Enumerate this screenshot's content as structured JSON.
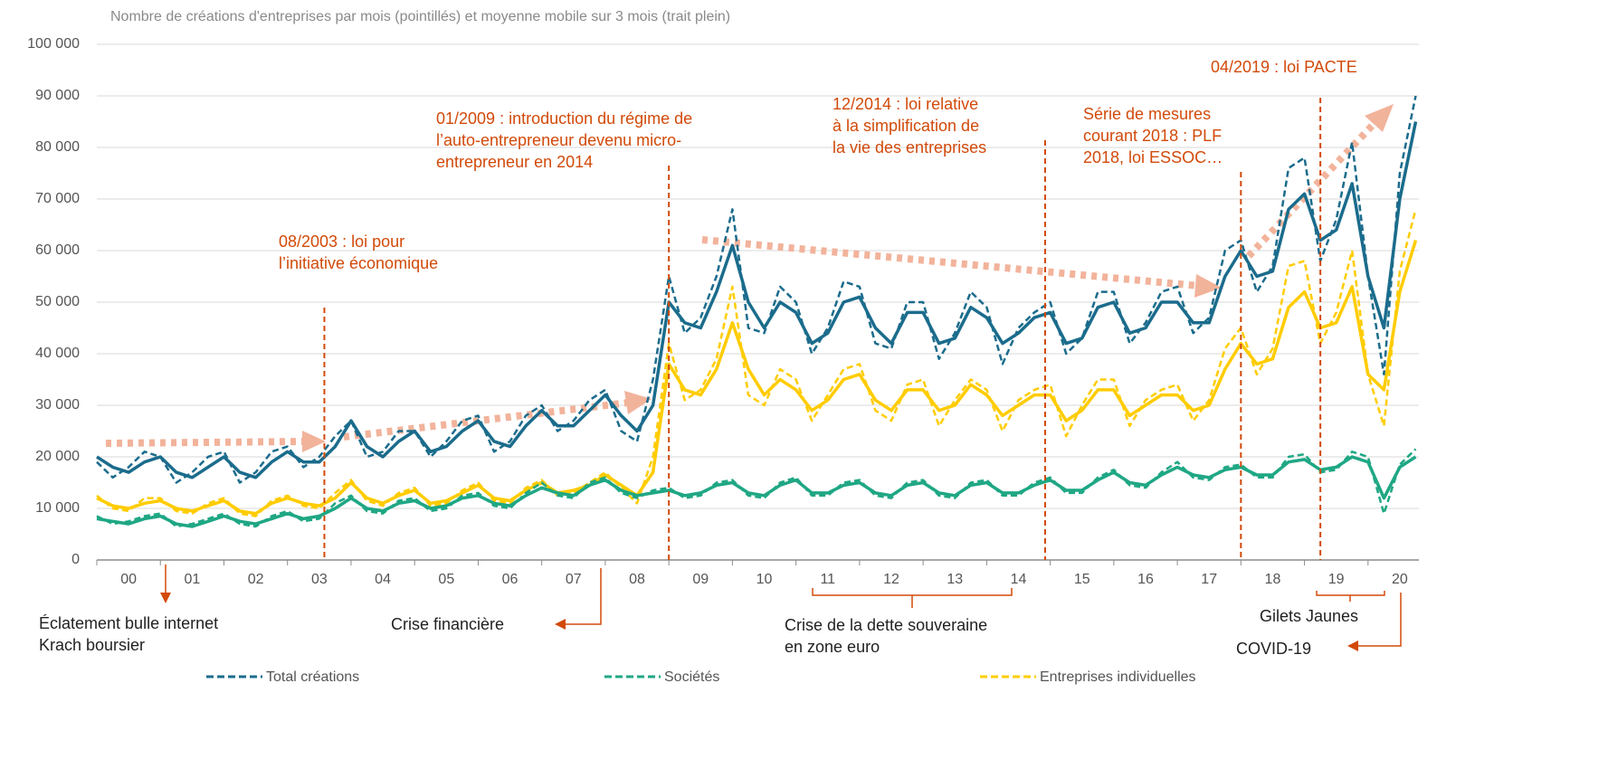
{
  "chart_data": {
    "type": "line",
    "title": "Nombre de créations d'entreprises par mois (pointillés) et moyenne mobile sur 3 mois (trait plein)",
    "x": [
      2000,
      2000.25,
      2000.5,
      2000.75,
      2001,
      2001.25,
      2001.5,
      2001.75,
      2002,
      2002.25,
      2002.5,
      2002.75,
      2003,
      2003.25,
      2003.5,
      2003.75,
      2004,
      2004.25,
      2004.5,
      2004.75,
      2005,
      2005.25,
      2005.5,
      2005.75,
      2006,
      2006.25,
      2006.5,
      2006.75,
      2007,
      2007.25,
      2007.5,
      2007.75,
      2008,
      2008.25,
      2008.5,
      2008.75,
      2009,
      2009.25,
      2009.5,
      2009.75,
      2010,
      2010.25,
      2010.5,
      2010.75,
      2011,
      2011.25,
      2011.5,
      2011.75,
      2012,
      2012.25,
      2012.5,
      2012.75,
      2013,
      2013.25,
      2013.5,
      2013.75,
      2014,
      2014.25,
      2014.5,
      2014.75,
      2015,
      2015.25,
      2015.5,
      2015.75,
      2016,
      2016.25,
      2016.5,
      2016.75,
      2017,
      2017.25,
      2017.5,
      2017.75,
      2018,
      2018.25,
      2018.5,
      2018.75,
      2019,
      2019.25,
      2019.5,
      2019.75,
      2020,
      2020.25,
      2020.5,
      2020.75
    ],
    "xlim": [
      2000,
      2020.8
    ],
    "xticks": [
      {
        "value": 2000.5,
        "label": "00"
      },
      {
        "value": 2001.5,
        "label": "01"
      },
      {
        "value": 2002.5,
        "label": "02"
      },
      {
        "value": 2003.5,
        "label": "03"
      },
      {
        "value": 2004.5,
        "label": "04"
      },
      {
        "value": 2005.5,
        "label": "05"
      },
      {
        "value": 2006.5,
        "label": "06"
      },
      {
        "value": 2007.5,
        "label": "07"
      },
      {
        "value": 2008.5,
        "label": "08"
      },
      {
        "value": 2009.5,
        "label": "09"
      },
      {
        "value": 2010.5,
        "label": "10"
      },
      {
        "value": 2011.5,
        "label": "11"
      },
      {
        "value": 2012.5,
        "label": "12"
      },
      {
        "value": 2013.5,
        "label": "13"
      },
      {
        "value": 2014.5,
        "label": "14"
      },
      {
        "value": 2015.5,
        "label": "15"
      },
      {
        "value": 2016.5,
        "label": "16"
      },
      {
        "value": 2017.5,
        "label": "17"
      },
      {
        "value": 2018.5,
        "label": "18"
      },
      {
        "value": 2019.5,
        "label": "19"
      },
      {
        "value": 2020.5,
        "label": "20"
      }
    ],
    "ylim": [
      0,
      100000
    ],
    "yticks": [
      0,
      {
        "value": 10000,
        "label": "10 000"
      },
      {
        "value": 20000,
        "label": "20 000"
      },
      {
        "value": 30000,
        "label": "30 000"
      },
      {
        "value": 40000,
        "label": "40 000"
      },
      {
        "value": 50000,
        "label": "50 000"
      },
      {
        "value": 60000,
        "label": "60 000"
      },
      {
        "value": 70000,
        "label": "70 000"
      },
      {
        "value": 80000,
        "label": "80 000"
      },
      {
        "value": 90000,
        "label": "90 000"
      },
      {
        "value": 100000,
        "label": "100 000"
      }
    ],
    "grid": true,
    "series": [
      {
        "name": "Total créations",
        "color": "#1b6c8c",
        "values": [
          19000,
          16000,
          18000,
          21000,
          20000,
          15000,
          17000,
          20000,
          21000,
          15000,
          17000,
          21000,
          22000,
          18000,
          20000,
          24000,
          27000,
          20000,
          21000,
          25000,
          25000,
          20000,
          23000,
          27000,
          28000,
          21000,
          23000,
          28000,
          30000,
          25000,
          27000,
          31000,
          33000,
          25000,
          23000,
          35000,
          55000,
          44000,
          47000,
          55000,
          68000,
          45000,
          44000,
          53000,
          50000,
          40000,
          45000,
          54000,
          53000,
          42000,
          41000,
          50000,
          50000,
          39000,
          44000,
          52000,
          49000,
          38000,
          45000,
          48000,
          50000,
          40000,
          43000,
          52000,
          52000,
          42000,
          46000,
          52000,
          53000,
          44000,
          47000,
          60000,
          62000,
          52000,
          57000,
          76000,
          78000,
          58000,
          66000,
          81000,
          55000,
          36000,
          75000,
          90000
        ],
        "moving_average": [
          20000,
          18000,
          17000,
          19000,
          20000,
          17000,
          16000,
          18000,
          20000,
          17000,
          16000,
          19000,
          21000,
          19000,
          19000,
          22000,
          27000,
          22000,
          20000,
          23000,
          25000,
          21000,
          22000,
          25000,
          27000,
          23000,
          22000,
          26000,
          29000,
          26000,
          26000,
          29000,
          32000,
          28000,
          25000,
          30000,
          50000,
          46000,
          45000,
          52000,
          61000,
          50000,
          45000,
          50000,
          48000,
          42000,
          44000,
          50000,
          51000,
          45000,
          42000,
          48000,
          48000,
          42000,
          43000,
          49000,
          47000,
          42000,
          44000,
          47000,
          48000,
          42000,
          43000,
          49000,
          50000,
          44000,
          45000,
          50000,
          50000,
          46000,
          46000,
          55000,
          60000,
          55000,
          56000,
          68000,
          71000,
          62000,
          64000,
          73000,
          55000,
          45000,
          70000,
          85000
        ]
      },
      {
        "name": "Sociétés",
        "color": "#1fa784",
        "values": [
          8500,
          7000,
          7500,
          8500,
          9000,
          6500,
          7000,
          8000,
          9000,
          7000,
          6500,
          8500,
          9500,
          7500,
          8000,
          11000,
          12500,
          9500,
          9000,
          11500,
          12000,
          9500,
          10000,
          12500,
          13000,
          10500,
          10000,
          13000,
          15000,
          12500,
          12000,
          15000,
          16000,
          13000,
          12000,
          13500,
          14000,
          12000,
          12500,
          15000,
          15500,
          12500,
          12000,
          15000,
          16000,
          12500,
          12500,
          15000,
          15500,
          12500,
          12000,
          15000,
          15500,
          12500,
          12000,
          15000,
          15500,
          12500,
          12500,
          15000,
          16000,
          13000,
          13000,
          16000,
          17500,
          14500,
          14000,
          17000,
          19000,
          16000,
          15500,
          18000,
          18500,
          16000,
          16000,
          20000,
          20500,
          17000,
          17500,
          21000,
          20000,
          9000,
          18500,
          21500
        ],
        "moving_average": [
          8000,
          7500,
          7000,
          8000,
          8500,
          7000,
          6500,
          7500,
          8500,
          7500,
          7000,
          8000,
          9000,
          8000,
          8500,
          10000,
          12000,
          10000,
          9500,
          11000,
          11500,
          10000,
          10500,
          12000,
          12500,
          11000,
          10500,
          12500,
          14000,
          13000,
          12500,
          14500,
          15500,
          13500,
          12500,
          13000,
          13500,
          12500,
          13000,
          14500,
          15000,
          13000,
          12500,
          14500,
          15500,
          13000,
          13000,
          14500,
          15000,
          13000,
          12500,
          14500,
          15000,
          13000,
          12500,
          14500,
          15000,
          13000,
          13000,
          14500,
          15500,
          13500,
          13500,
          15500,
          17000,
          15000,
          14500,
          16500,
          18000,
          16500,
          16000,
          17500,
          18000,
          16500,
          16500,
          19000,
          19500,
          17500,
          18000,
          20000,
          19000,
          12000,
          18000,
          20000
        ]
      },
      {
        "name": "Entreprises individuelles",
        "color": "#ffcc00",
        "values": [
          12500,
          10000,
          9500,
          12000,
          12000,
          9500,
          9000,
          11000,
          12000,
          9000,
          8500,
          11500,
          12500,
          10500,
          10000,
          13000,
          15500,
          11500,
          10500,
          13000,
          14000,
          10500,
          11000,
          13500,
          15000,
          11500,
          11000,
          14000,
          15500,
          12500,
          13000,
          15000,
          17000,
          14000,
          11000,
          20000,
          42000,
          31000,
          33000,
          39000,
          53000,
          32000,
          30000,
          37000,
          35000,
          27000,
          32000,
          37000,
          38000,
          29000,
          27000,
          34000,
          35000,
          26000,
          31000,
          35000,
          33000,
          25000,
          31000,
          33000,
          34000,
          24000,
          30000,
          35000,
          35000,
          26000,
          31000,
          33000,
          34000,
          27000,
          31000,
          41000,
          45000,
          36000,
          41000,
          57000,
          58000,
          42000,
          48000,
          60000,
          36000,
          26000,
          56000,
          68000
        ],
        "moving_average": [
          12000,
          10500,
          10000,
          11000,
          11500,
          10000,
          9500,
          10500,
          11500,
          9500,
          9000,
          11000,
          12000,
          11000,
          10500,
          12000,
          15000,
          12000,
          11000,
          12500,
          13500,
          11000,
          11500,
          13000,
          14500,
          12000,
          11500,
          13500,
          15000,
          13000,
          13500,
          14500,
          16500,
          14500,
          12500,
          17000,
          38000,
          33000,
          32000,
          37000,
          46000,
          37000,
          32000,
          35000,
          33000,
          29000,
          31000,
          35000,
          36000,
          31000,
          29000,
          33000,
          33000,
          29000,
          30000,
          34000,
          32000,
          28000,
          30000,
          32000,
          32000,
          27000,
          29000,
          33000,
          33000,
          28000,
          30000,
          32000,
          32000,
          29000,
          30000,
          37000,
          42000,
          38000,
          39000,
          49000,
          52000,
          45000,
          46000,
          53000,
          36000,
          33000,
          52000,
          62000
        ]
      }
    ],
    "events": [
      {
        "x": 2003.58,
        "lines": [
          "08/2003 : loi pour",
          "l’initiative économique"
        ]
      },
      {
        "x": 2009.0,
        "lines": [
          "01/2009 : introduction du régime de",
          "l’auto-entrepreneur devenu micro-",
          "entrepreneur en 2014"
        ]
      },
      {
        "x": 2014.92,
        "lines": [
          "12/2014 : loi relative",
          "à la simplification de",
          "la vie des entreprises"
        ]
      },
      {
        "x": 2018.0,
        "lines": [
          "Série de mesures",
          "courant 2018 : PLF",
          "2018, loi ESSOC…"
        ]
      },
      {
        "x": 2019.25,
        "lines": [
          "04/2019 : loi PACTE"
        ]
      }
    ],
    "periods": [
      {
        "lines": [
          "Éclatement bulle internet",
          "Krach boursier"
        ]
      },
      {
        "lines": [
          "Crise financière"
        ]
      },
      {
        "lines": [
          "Crise de la dette souveraine",
          "en zone euro"
        ]
      },
      {
        "lines": [
          "Gilets Jaunes"
        ]
      },
      {
        "lines": [
          "COVID-19"
        ]
      }
    ]
  }
}
